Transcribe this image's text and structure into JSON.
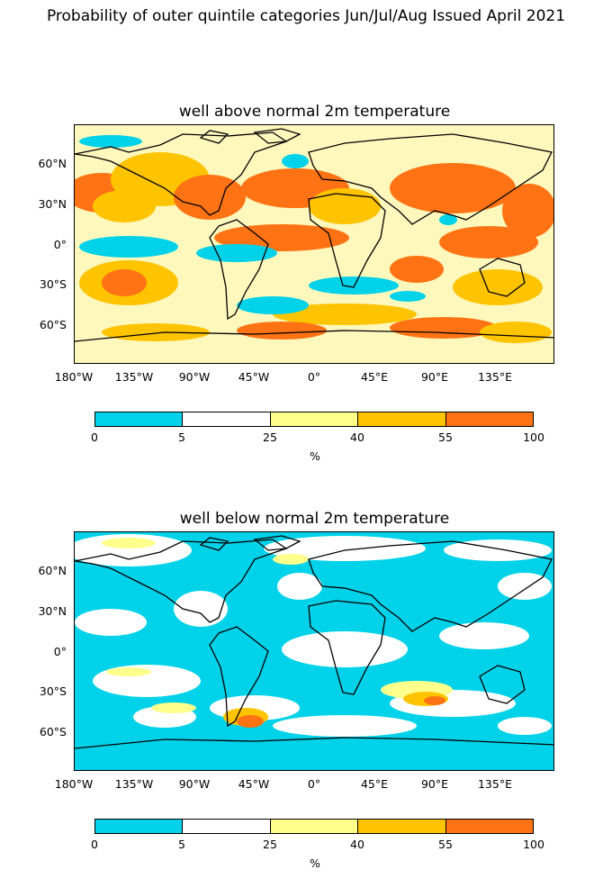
{
  "suptitle": "Probability of outer quintile categories Jun/Jul/Aug Issued April 2021",
  "colors": {
    "cyan": "#00d2ea",
    "white": "#ffffff",
    "yellow": "#ffff8c",
    "gold": "#ffc400",
    "orange": "#ff7314",
    "land_line": "#000000"
  },
  "ytick_labels": [
    "60°N",
    "30°N",
    "0°",
    "30°S",
    "60°S"
  ],
  "xtick_labels": [
    "180°W",
    "135°W",
    "90°W",
    "45°W",
    "0°",
    "45°E",
    "90°E",
    "135°E"
  ],
  "colorbar": {
    "tick_labels": [
      "0",
      "5",
      "25",
      "40",
      "55",
      "100"
    ],
    "unit": "%",
    "segments": [
      "#00d2ea",
      "#ffffff",
      "#ffff8c",
      "#ffc400",
      "#ff7314"
    ]
  },
  "panels": [
    {
      "title": "well above normal 2m temperature"
    },
    {
      "title": "well below normal 2m temperature"
    }
  ]
}
